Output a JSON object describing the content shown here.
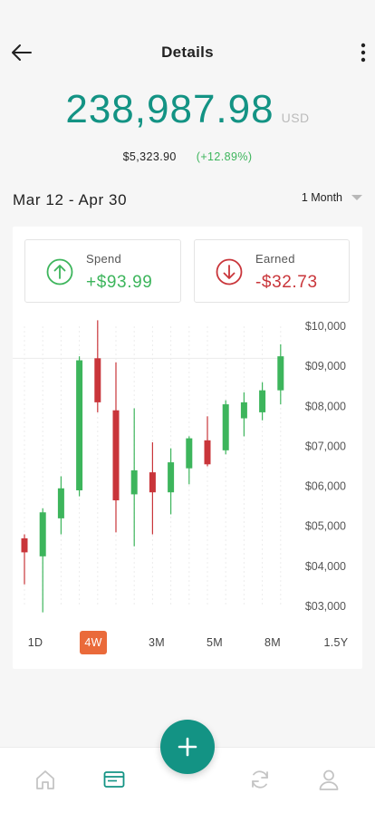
{
  "header": {
    "title": "Details"
  },
  "balance": {
    "amount": "238,987.98",
    "currency": "USD",
    "change_abs": "$5,323.90",
    "change_pct": "(+12.89%)"
  },
  "range": {
    "label": "Mar 12 - Apr 30",
    "period": "1 Month"
  },
  "stats": {
    "spend": {
      "label": "Spend",
      "value": "+$93.99",
      "icon": "arrow-up-circle-icon"
    },
    "earned": {
      "label": "Earned",
      "value": "-$32.73",
      "icon": "arrow-down-circle-icon"
    }
  },
  "chart_data": {
    "type": "candlestick",
    "y_ticks": [
      "$10,000",
      "$09,000",
      "$08,000",
      "$07,000",
      "$06,000",
      "$05,000",
      "$04,000",
      "$03,000"
    ],
    "ylim": [
      3000,
      10000
    ],
    "grid": true,
    "colors": {
      "up": "#3db55c",
      "down": "#c9353a"
    },
    "candles": [
      {
        "open": 4700,
        "close": 4350,
        "high": 4800,
        "low": 3550
      },
      {
        "open": 4250,
        "close": 5350,
        "high": 5450,
        "low": 2850
      },
      {
        "open": 5200,
        "close": 5950,
        "high": 6250,
        "low": 4800
      },
      {
        "open": 5900,
        "close": 9150,
        "high": 9250,
        "low": 5750
      },
      {
        "open": 9200,
        "close": 8100,
        "high": 10150,
        "low": 7850
      },
      {
        "open": 7900,
        "close": 5650,
        "high": 9100,
        "low": 4850
      },
      {
        "open": 5800,
        "close": 6400,
        "high": 7950,
        "low": 4500
      },
      {
        "open": 6350,
        "close": 5850,
        "high": 7100,
        "low": 4800
      },
      {
        "open": 5850,
        "close": 6600,
        "high": 6950,
        "low": 5300
      },
      {
        "open": 6450,
        "close": 7200,
        "high": 7250,
        "low": 6050
      },
      {
        "open": 7150,
        "close": 6550,
        "high": 7750,
        "low": 6500
      },
      {
        "open": 6900,
        "close": 8050,
        "high": 8150,
        "low": 6800
      },
      {
        "open": 7700,
        "close": 8100,
        "high": 8350,
        "low": 7250
      },
      {
        "open": 7850,
        "close": 8400,
        "high": 8600,
        "low": 7650
      },
      {
        "open": 8400,
        "close": 9250,
        "high": 9550,
        "low": 8050
      }
    ]
  },
  "periods": [
    {
      "label": "1D",
      "active": false
    },
    {
      "label": "4W",
      "active": true
    },
    {
      "label": "3M",
      "active": false
    },
    {
      "label": "5M",
      "active": false
    },
    {
      "label": "8M",
      "active": false
    },
    {
      "label": "1.5Y",
      "active": false
    }
  ],
  "nav": {
    "items": [
      "home-icon",
      "card-icon",
      "refresh-icon",
      "profile-icon"
    ],
    "active": "card-icon",
    "fab_icon": "plus-icon",
    "colors": {
      "accent": "#139384",
      "inactive": "#c4c4c4"
    }
  }
}
